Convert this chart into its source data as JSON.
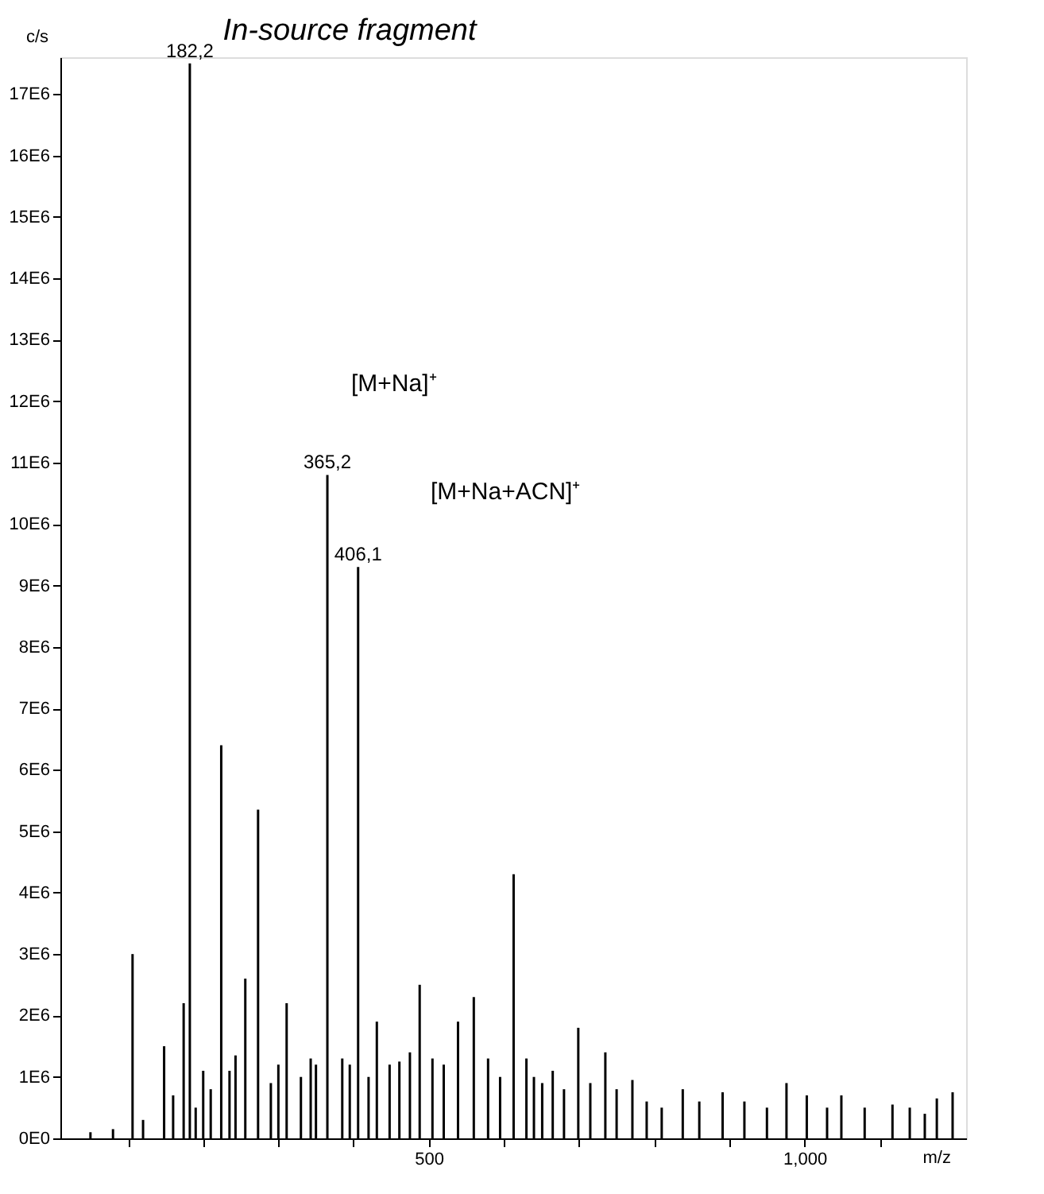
{
  "chart_data": {
    "type": "bar",
    "title": "In-source fragment",
    "xlabel": "m/z",
    "ylabel": "c/s",
    "x": [
      50,
      80,
      106,
      120,
      148,
      160,
      174,
      182.2,
      190,
      200,
      210,
      224,
      235,
      243,
      256,
      273,
      290,
      300,
      311,
      330,
      343,
      350,
      365.2,
      385,
      395,
      406.1,
      420,
      431,
      448,
      461,
      475,
      488,
      505,
      520,
      539,
      560,
      579,
      595,
      613,
      630,
      640,
      651,
      665,
      680,
      699,
      715,
      735,
      750,
      771,
      790,
      810,
      838,
      860,
      891,
      920,
      950,
      976,
      1003,
      1030,
      1049,
      1080,
      1117,
      1140,
      1160,
      1176,
      1197
    ],
    "values": [
      100000,
      150000,
      3000000,
      300000,
      1500000,
      700000,
      2200000,
      17500000,
      500000,
      1100000,
      800000,
      6400000,
      1100000,
      1350000,
      2600000,
      5350000,
      900000,
      1200000,
      2200000,
      1000000,
      1300000,
      1200000,
      10800000,
      1300000,
      1200000,
      9300000,
      1000000,
      1900000,
      1200000,
      1250000,
      1400000,
      2500000,
      1300000,
      1200000,
      1900000,
      2300000,
      1300000,
      1000000,
      4300000,
      1300000,
      1000000,
      900000,
      1100000,
      800000,
      1800000,
      900000,
      1400000,
      800000,
      950000,
      600000,
      500000,
      800000,
      600000,
      750000,
      600000,
      500000,
      900000,
      700000,
      500000,
      700000,
      500000,
      550000,
      500000,
      400000,
      650000,
      750000
    ],
    "color": "#000000",
    "xlim": [
      10,
      1215
    ],
    "xticks": [
      {
        "value": 100,
        "label": null
      },
      {
        "value": 200,
        "label": null
      },
      {
        "value": 300,
        "label": null
      },
      {
        "value": 400,
        "label": null
      },
      {
        "value": 500,
        "label": "500"
      },
      {
        "value": 600,
        "label": null
      },
      {
        "value": 700,
        "label": null
      },
      {
        "value": 800,
        "label": null
      },
      {
        "value": 900,
        "label": null
      },
      {
        "value": 1000,
        "label": "1,000"
      },
      {
        "value": 1100,
        "label": null
      }
    ],
    "ylim": [
      0,
      17600000
    ],
    "yticks": [
      {
        "value": 0,
        "label": "0E0"
      },
      {
        "value": 1000000,
        "label": "1E6"
      },
      {
        "value": 2000000,
        "label": "2E6"
      },
      {
        "value": 3000000,
        "label": "3E6"
      },
      {
        "value": 4000000,
        "label": "4E6"
      },
      {
        "value": 5000000,
        "label": "5E6"
      },
      {
        "value": 6000000,
        "label": "6E6"
      },
      {
        "value": 7000000,
        "label": "7E6"
      },
      {
        "value": 8000000,
        "label": "8E6"
      },
      {
        "value": 9000000,
        "label": "9E6"
      },
      {
        "value": 10000000,
        "label": "10E6"
      },
      {
        "value": 11000000,
        "label": "11E6"
      },
      {
        "value": 12000000,
        "label": "12E6"
      },
      {
        "value": 13000000,
        "label": "13E6"
      },
      {
        "value": 14000000,
        "label": "14E6"
      },
      {
        "value": 15000000,
        "label": "15E6"
      },
      {
        "value": 16000000,
        "label": "16E6"
      },
      {
        "value": 17000000,
        "label": "17E6"
      }
    ],
    "annotations": [
      {
        "text": "182,2",
        "x": 182.2,
        "y": 17500000
      },
      {
        "text": "365,2",
        "x": 365.2,
        "y": 10800000
      },
      {
        "text": "406,1",
        "x": 406.1,
        "y": 9300000
      },
      "[M+Na]⁺",
      "[M+Na+ACN]⁺"
    ],
    "grid": false
  }
}
